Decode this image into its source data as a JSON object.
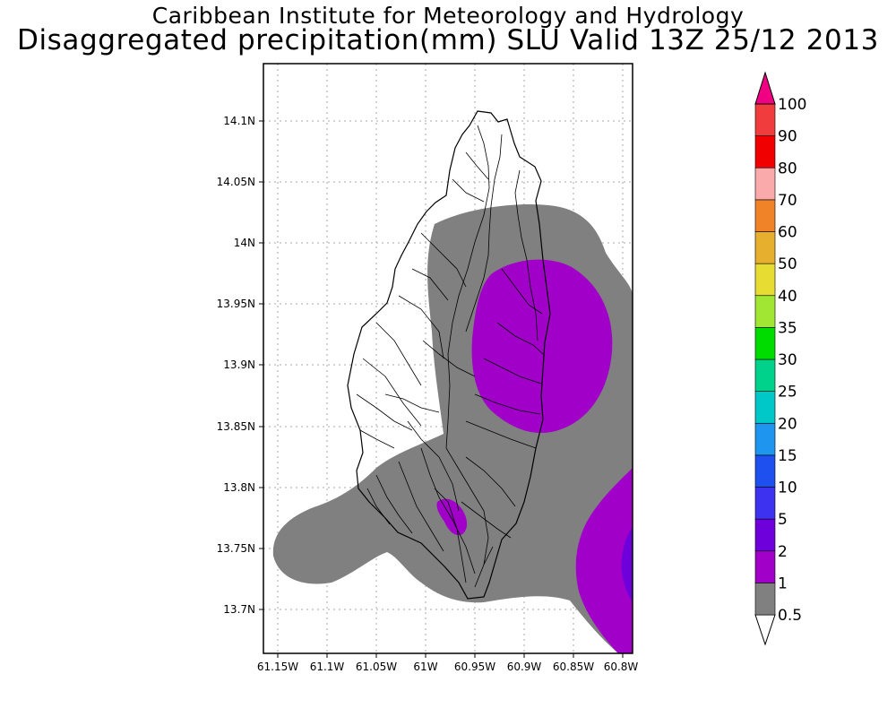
{
  "title_line1": "Caribbean Institute for Meteorology and Hydrology",
  "title_line2": "Disaggregated precipitation(mm) SLU Valid 13Z 25/12 2013",
  "lat_ticks": [
    "14.1N",
    "14.05N",
    "14N",
    "13.95N",
    "13.9N",
    "13.85N",
    "13.8N",
    "13.75N",
    "13.7N"
  ],
  "lon_ticks": [
    "61.15W",
    "61.1W",
    "61.05W",
    "61W",
    "60.95W",
    "60.9W",
    "60.85W",
    "60.8W"
  ],
  "colorbar": {
    "labels": [
      "0.5",
      "1",
      "2",
      "5",
      "10",
      "15",
      "20",
      "25",
      "30",
      "35",
      "40",
      "50",
      "60",
      "70",
      "80",
      "90",
      "100"
    ],
    "colors": [
      "#808080",
      "#a000c8",
      "#6e00dc",
      "#3c32f0",
      "#1e50f0",
      "#1e96f0",
      "#00c8c8",
      "#00d28c",
      "#00dc00",
      "#a0e632",
      "#e6dc32",
      "#e6af2d",
      "#f08228",
      "#faaaaa",
      "#f00000",
      "#f03c3c",
      "#f00082"
    ]
  }
}
